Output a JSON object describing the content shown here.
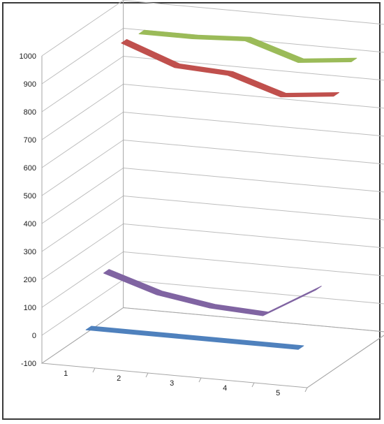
{
  "chart_data": {
    "type": "line",
    "variant": "3d-ribbon",
    "title": "",
    "xlabel": "",
    "ylabel": "",
    "categories": [
      "1",
      "2",
      "3",
      "4",
      "5"
    ],
    "ylim": [
      -100,
      1000
    ],
    "yticks": [
      -100,
      0,
      100,
      200,
      300,
      400,
      500,
      600,
      700,
      800,
      900,
      1000
    ],
    "grid": true,
    "legend": "none",
    "series": [
      {
        "color": "#4f81bd",
        "values": [
          0,
          0,
          0,
          0,
          0
        ]
      },
      {
        "color": "#8064a2",
        "values": [
          160,
          100,
          70,
          60,
          170
        ]
      },
      {
        "color": "#c0504d",
        "values": [
          940,
          870,
          860,
          800,
          820
        ]
      },
      {
        "color": "#9bbb59",
        "values": [
          930,
          930,
          940,
          880,
          900
        ]
      }
    ]
  }
}
